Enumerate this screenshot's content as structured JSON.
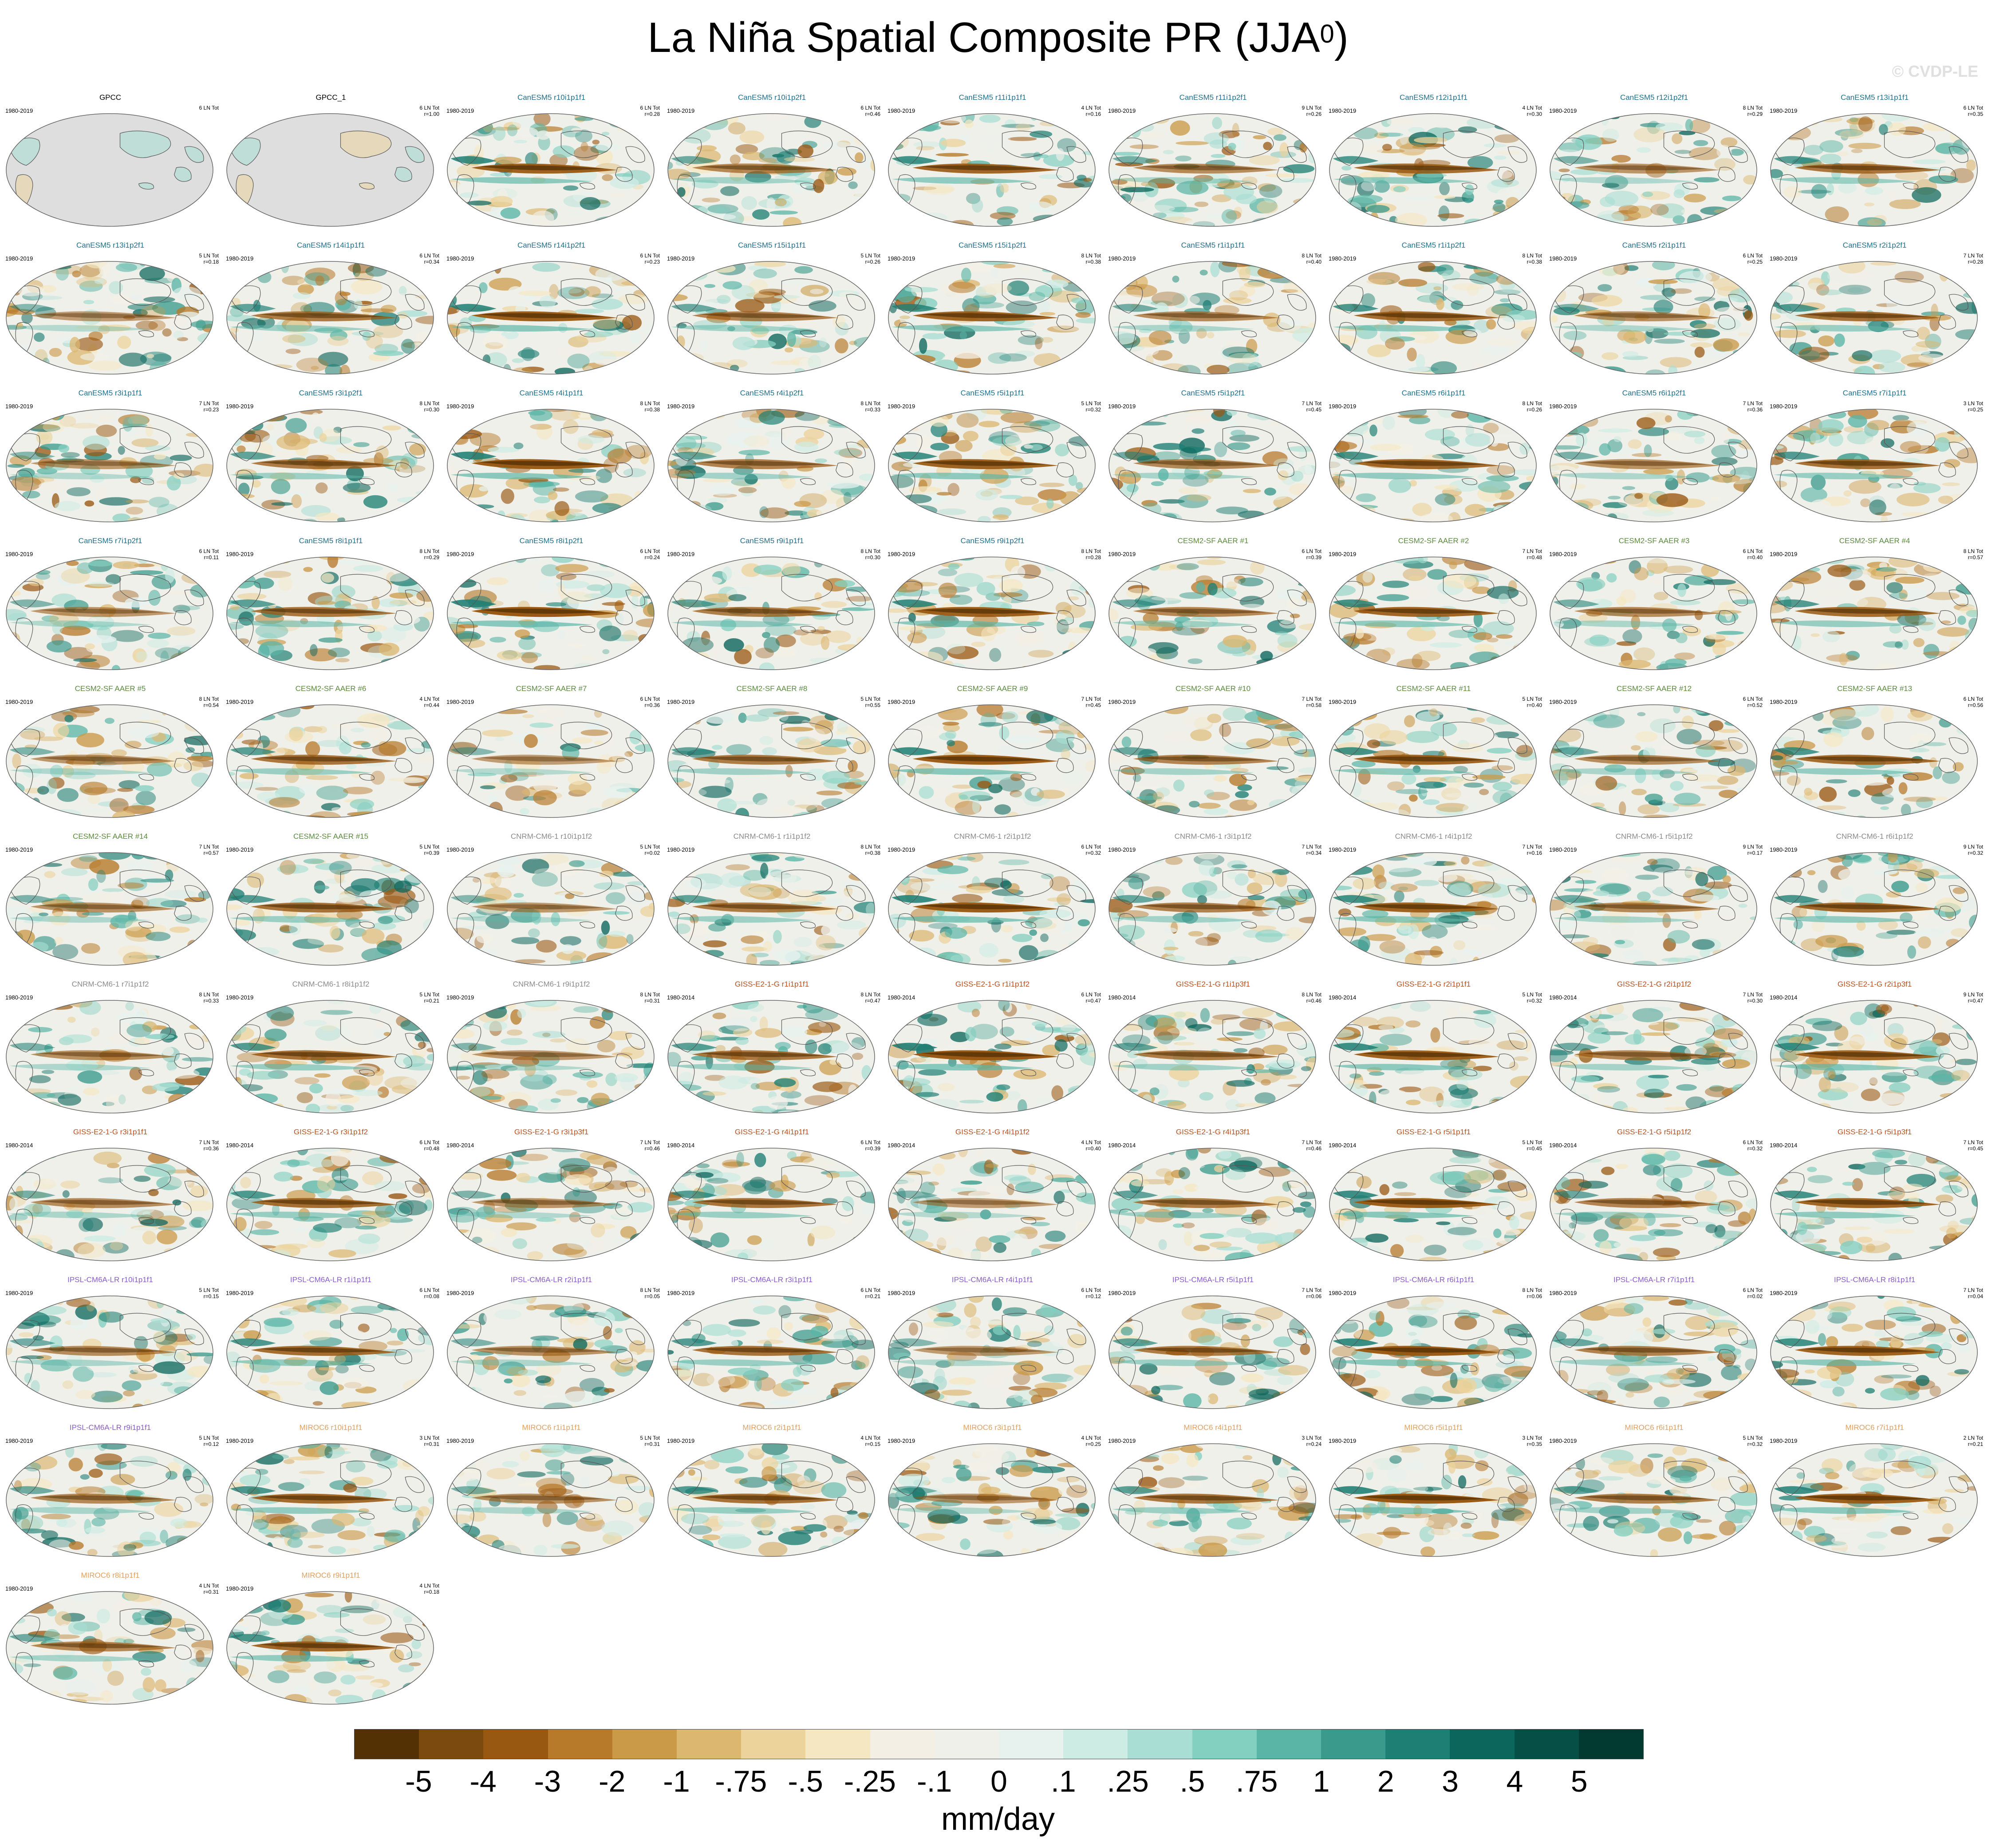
{
  "title": "La Niña Spatial Composite PR (JJA",
  "title_sup": "0",
  "title_close": ")",
  "watermark": "© CVDP-LE",
  "units": "mm/day",
  "colors": {
    "model_CanESM5": "#1f6f8b",
    "model_CESM2": "#5a8a3c",
    "model_CNRM": "#8a8a8a",
    "model_GISS": "#b5511f",
    "model_IPSL": "#8a5cc8",
    "model_MIROC": "#e0a060",
    "obs": "#000000",
    "land_gray": "#dedede"
  },
  "colorbar": {
    "colors": [
      "#543005",
      "#7a4a0f",
      "#995812",
      "#b77a2b",
      "#cb9a48",
      "#dcb770",
      "#ecd39c",
      "#f5e7c2",
      "#f3efe4",
      "#f0f0ea",
      "#e7f2ef",
      "#cdece4",
      "#a8ded3",
      "#83cfc0",
      "#5ab5a6",
      "#3a9a8c",
      "#1e7f74",
      "#0c665c",
      "#064f46",
      "#023a32"
    ],
    "labels": [
      "-5",
      "-4",
      "-3",
      "-2",
      "-1",
      "-.75",
      "-.5",
      "-.25",
      "-.1",
      "0",
      ".1",
      ".25",
      ".5",
      ".75",
      "1",
      "2",
      "3",
      "4",
      "5"
    ]
  },
  "panels": [
    {
      "title": "GPCC",
      "years": "1980-2019",
      "ln": "6 LN Tot",
      "r": "",
      "group": "obs"
    },
    {
      "title": "GPCC_1",
      "years": "",
      "ln": "6 LN Tot",
      "r": "r=1.00",
      "group": "obs"
    },
    {
      "title": "CanESM5 r10i1p1f1",
      "years": "1980-2019",
      "ln": "6 LN Tot",
      "r": "r=0.28",
      "group": "model_CanESM5"
    },
    {
      "title": "CanESM5 r10i1p2f1",
      "years": "1980-2019",
      "ln": "6 LN Tot",
      "r": "r=0.46",
      "group": "model_CanESM5"
    },
    {
      "title": "CanESM5 r11i1p1f1",
      "years": "1980-2019",
      "ln": "4 LN Tot",
      "r": "r=0.16",
      "group": "model_CanESM5"
    },
    {
      "title": "CanESM5 r11i1p2f1",
      "years": "1980-2019",
      "ln": "9 LN Tot",
      "r": "r=0.26",
      "group": "model_CanESM5"
    },
    {
      "title": "CanESM5 r12i1p1f1",
      "years": "1980-2019",
      "ln": "4 LN Tot",
      "r": "r=0.30",
      "group": "model_CanESM5"
    },
    {
      "title": "CanESM5 r12i1p2f1",
      "years": "1980-2019",
      "ln": "8 LN Tot",
      "r": "r=0.29",
      "group": "model_CanESM5"
    },
    {
      "title": "CanESM5 r13i1p1f1",
      "years": "1980-2019",
      "ln": "6 LN Tot",
      "r": "r=0.35",
      "group": "model_CanESM5"
    },
    {
      "title": "CanESM5 r13i1p2f1",
      "years": "1980-2019",
      "ln": "5 LN Tot",
      "r": "r=0.18",
      "group": "model_CanESM5"
    },
    {
      "title": "CanESM5 r14i1p1f1",
      "years": "1980-2019",
      "ln": "6 LN Tot",
      "r": "r=0.34",
      "group": "model_CanESM5"
    },
    {
      "title": "CanESM5 r14i1p2f1",
      "years": "1980-2019",
      "ln": "6 LN Tot",
      "r": "r=0.23",
      "group": "model_CanESM5"
    },
    {
      "title": "CanESM5 r15i1p1f1",
      "years": "1980-2019",
      "ln": "5 LN Tot",
      "r": "r=0.26",
      "group": "model_CanESM5"
    },
    {
      "title": "CanESM5 r15i1p2f1",
      "years": "1980-2019",
      "ln": "8 LN Tot",
      "r": "r=0.38",
      "group": "model_CanESM5"
    },
    {
      "title": "CanESM5 r1i1p1f1",
      "years": "1980-2019",
      "ln": "8 LN Tot",
      "r": "r=0.40",
      "group": "model_CanESM5"
    },
    {
      "title": "CanESM5 r1i1p2f1",
      "years": "1980-2019",
      "ln": "8 LN Tot",
      "r": "r=0.38",
      "group": "model_CanESM5"
    },
    {
      "title": "CanESM5 r2i1p1f1",
      "years": "1980-2019",
      "ln": "6 LN Tot",
      "r": "r=0.25",
      "group": "model_CanESM5"
    },
    {
      "title": "CanESM5 r2i1p2f1",
      "years": "1980-2019",
      "ln": "7 LN Tot",
      "r": "r=0.28",
      "group": "model_CanESM5"
    },
    {
      "title": "CanESM5 r3i1p1f1",
      "years": "1980-2019",
      "ln": "7 LN Tot",
      "r": "r=0.23",
      "group": "model_CanESM5"
    },
    {
      "title": "CanESM5 r3i1p2f1",
      "years": "1980-2019",
      "ln": "8 LN Tot",
      "r": "r=0.30",
      "group": "model_CanESM5"
    },
    {
      "title": "CanESM5 r4i1p1f1",
      "years": "1980-2019",
      "ln": "8 LN Tot",
      "r": "r=0.38",
      "group": "model_CanESM5"
    },
    {
      "title": "CanESM5 r4i1p2f1",
      "years": "1980-2019",
      "ln": "8 LN Tot",
      "r": "r=0.33",
      "group": "model_CanESM5"
    },
    {
      "title": "CanESM5 r5i1p1f1",
      "years": "1980-2019",
      "ln": "5 LN Tot",
      "r": "r=0.32",
      "group": "model_CanESM5"
    },
    {
      "title": "CanESM5 r5i1p2f1",
      "years": "1980-2019",
      "ln": "7 LN Tot",
      "r": "r=0.45",
      "group": "model_CanESM5"
    },
    {
      "title": "CanESM5 r6i1p1f1",
      "years": "1980-2019",
      "ln": "8 LN Tot",
      "r": "r=0.26",
      "group": "model_CanESM5"
    },
    {
      "title": "CanESM5 r6i1p2f1",
      "years": "1980-2019",
      "ln": "7 LN Tot",
      "r": "r=0.36",
      "group": "model_CanESM5"
    },
    {
      "title": "CanESM5 r7i1p1f1",
      "years": "1980-2019",
      "ln": "3 LN Tot",
      "r": "r=0.25",
      "group": "model_CanESM5"
    },
    {
      "title": "CanESM5 r7i1p2f1",
      "years": "1980-2019",
      "ln": "6 LN Tot",
      "r": "r=0.11",
      "group": "model_CanESM5"
    },
    {
      "title": "CanESM5 r8i1p1f1",
      "years": "1980-2019",
      "ln": "8 LN Tot",
      "r": "r=0.29",
      "group": "model_CanESM5"
    },
    {
      "title": "CanESM5 r8i1p2f1",
      "years": "1980-2019",
      "ln": "6 LN Tot",
      "r": "r=0.24",
      "group": "model_CanESM5"
    },
    {
      "title": "CanESM5 r9i1p1f1",
      "years": "1980-2019",
      "ln": "8 LN Tot",
      "r": "r=0.30",
      "group": "model_CanESM5"
    },
    {
      "title": "CanESM5 r9i1p2f1",
      "years": "1980-2019",
      "ln": "8 LN Tot",
      "r": "r=0.28",
      "group": "model_CanESM5"
    },
    {
      "title": "CESM2-SF AAER #1",
      "years": "1980-2019",
      "ln": "6 LN Tot",
      "r": "r=0.39",
      "group": "model_CESM2"
    },
    {
      "title": "CESM2-SF AAER #2",
      "years": "1980-2019",
      "ln": "7 LN Tot",
      "r": "r=0.48",
      "group": "model_CESM2"
    },
    {
      "title": "CESM2-SF AAER #3",
      "years": "1980-2019",
      "ln": "6 LN Tot",
      "r": "r=0.40",
      "group": "model_CESM2"
    },
    {
      "title": "CESM2-SF AAER #4",
      "years": "1980-2019",
      "ln": "8 LN Tot",
      "r": "r=0.57",
      "group": "model_CESM2"
    },
    {
      "title": "CESM2-SF AAER #5",
      "years": "1980-2019",
      "ln": "8 LN Tot",
      "r": "r=0.54",
      "group": "model_CESM2"
    },
    {
      "title": "CESM2-SF AAER #6",
      "years": "1980-2019",
      "ln": "4 LN Tot",
      "r": "r=0.44",
      "group": "model_CESM2"
    },
    {
      "title": "CESM2-SF AAER #7",
      "years": "1980-2019",
      "ln": "6 LN Tot",
      "r": "r=0.36",
      "group": "model_CESM2"
    },
    {
      "title": "CESM2-SF AAER #8",
      "years": "1980-2019",
      "ln": "5 LN Tot",
      "r": "r=0.55",
      "group": "model_CESM2"
    },
    {
      "title": "CESM2-SF AAER #9",
      "years": "1980-2019",
      "ln": "7 LN Tot",
      "r": "r=0.45",
      "group": "model_CESM2"
    },
    {
      "title": "CESM2-SF AAER #10",
      "years": "1980-2019",
      "ln": "7 LN Tot",
      "r": "r=0.58",
      "group": "model_CESM2"
    },
    {
      "title": "CESM2-SF AAER #11",
      "years": "1980-2019",
      "ln": "5 LN Tot",
      "r": "r=0.40",
      "group": "model_CESM2"
    },
    {
      "title": "CESM2-SF AAER #12",
      "years": "1980-2019",
      "ln": "6 LN Tot",
      "r": "r=0.52",
      "group": "model_CESM2"
    },
    {
      "title": "CESM2-SF AAER #13",
      "years": "1980-2019",
      "ln": "6 LN Tot",
      "r": "r=0.56",
      "group": "model_CESM2"
    },
    {
      "title": "CESM2-SF AAER #14",
      "years": "1980-2019",
      "ln": "7 LN Tot",
      "r": "r=0.57",
      "group": "model_CESM2"
    },
    {
      "title": "CESM2-SF AAER #15",
      "years": "1980-2019",
      "ln": "5 LN Tot",
      "r": "r=0.39",
      "group": "model_CESM2"
    },
    {
      "title": "CNRM-CM6-1 r10i1p1f2",
      "years": "1980-2019",
      "ln": "5 LN Tot",
      "r": "r=0.02",
      "group": "model_CNRM"
    },
    {
      "title": "CNRM-CM6-1 r1i1p1f2",
      "years": "1980-2019",
      "ln": "8 LN Tot",
      "r": "r=0.38",
      "group": "model_CNRM"
    },
    {
      "title": "CNRM-CM6-1 r2i1p1f2",
      "years": "1980-2019",
      "ln": "6 LN Tot",
      "r": "r=0.32",
      "group": "model_CNRM"
    },
    {
      "title": "CNRM-CM6-1 r3i1p1f2",
      "years": "1980-2019",
      "ln": "7 LN Tot",
      "r": "r=0.34",
      "group": "model_CNRM"
    },
    {
      "title": "CNRM-CM6-1 r4i1p1f2",
      "years": "1980-2019",
      "ln": "7 LN Tot",
      "r": "r=0.16",
      "group": "model_CNRM"
    },
    {
      "title": "CNRM-CM6-1 r5i1p1f2",
      "years": "1980-2019",
      "ln": "9 LN Tot",
      "r": "r=0.17",
      "group": "model_CNRM"
    },
    {
      "title": "CNRM-CM6-1 r6i1p1f2",
      "years": "1980-2019",
      "ln": "9 LN Tot",
      "r": "r=0.32",
      "group": "model_CNRM"
    },
    {
      "title": "CNRM-CM6-1 r7i1p1f2",
      "years": "1980-2019",
      "ln": "8 LN Tot",
      "r": "r=0.33",
      "group": "model_CNRM"
    },
    {
      "title": "CNRM-CM6-1 r8i1p1f2",
      "years": "1980-2019",
      "ln": "5 LN Tot",
      "r": "r=0.21",
      "group": "model_CNRM"
    },
    {
      "title": "CNRM-CM6-1 r9i1p1f2",
      "years": "1980-2019",
      "ln": "8 LN Tot",
      "r": "r=0.31",
      "group": "model_CNRM"
    },
    {
      "title": "GISS-E2-1-G r1i1p1f1",
      "years": "1980-2014",
      "ln": "8 LN Tot",
      "r": "r=0.47",
      "group": "model_GISS"
    },
    {
      "title": "GISS-E2-1-G r1i1p1f2",
      "years": "1980-2014",
      "ln": "6 LN Tot",
      "r": "r=0.47",
      "group": "model_GISS"
    },
    {
      "title": "GISS-E2-1-G r1i1p3f1",
      "years": "1980-2014",
      "ln": "8 LN Tot",
      "r": "r=0.46",
      "group": "model_GISS"
    },
    {
      "title": "GISS-E2-1-G r2i1p1f1",
      "years": "1980-2014",
      "ln": "5 LN Tot",
      "r": "r=0.32",
      "group": "model_GISS"
    },
    {
      "title": "GISS-E2-1-G r2i1p1f2",
      "years": "1980-2014",
      "ln": "7 LN Tot",
      "r": "r=0.30",
      "group": "model_GISS"
    },
    {
      "title": "GISS-E2-1-G r2i1p3f1",
      "years": "1980-2014",
      "ln": "9 LN Tot",
      "r": "r=0.47",
      "group": "model_GISS"
    },
    {
      "title": "GISS-E2-1-G r3i1p1f1",
      "years": "1980-2014",
      "ln": "7 LN Tot",
      "r": "r=0.36",
      "group": "model_GISS"
    },
    {
      "title": "GISS-E2-1-G r3i1p1f2",
      "years": "1980-2014",
      "ln": "6 LN Tot",
      "r": "r=0.48",
      "group": "model_GISS"
    },
    {
      "title": "GISS-E2-1-G r3i1p3f1",
      "years": "1980-2014",
      "ln": "7 LN Tot",
      "r": "r=0.46",
      "group": "model_GISS"
    },
    {
      "title": "GISS-E2-1-G r4i1p1f1",
      "years": "1980-2014",
      "ln": "6 LN Tot",
      "r": "r=0.39",
      "group": "model_GISS"
    },
    {
      "title": "GISS-E2-1-G r4i1p1f2",
      "years": "1980-2014",
      "ln": "4 LN Tot",
      "r": "r=0.40",
      "group": "model_GISS"
    },
    {
      "title": "GISS-E2-1-G r4i1p3f1",
      "years": "1980-2014",
      "ln": "7 LN Tot",
      "r": "r=0.46",
      "group": "model_GISS"
    },
    {
      "title": "GISS-E2-1-G r5i1p1f1",
      "years": "1980-2014",
      "ln": "5 LN Tot",
      "r": "r=0.45",
      "group": "model_GISS"
    },
    {
      "title": "GISS-E2-1-G r5i1p1f2",
      "years": "1980-2014",
      "ln": "6 LN Tot",
      "r": "r=0.32",
      "group": "model_GISS"
    },
    {
      "title": "GISS-E2-1-G r5i1p3f1",
      "years": "1980-2014",
      "ln": "7 LN Tot",
      "r": "r=0.45",
      "group": "model_GISS"
    },
    {
      "title": "IPSL-CM6A-LR r10i1p1f1",
      "years": "1980-2019",
      "ln": "5 LN Tot",
      "r": "r=0.15",
      "group": "model_IPSL"
    },
    {
      "title": "IPSL-CM6A-LR r1i1p1f1",
      "years": "1980-2019",
      "ln": "6 LN Tot",
      "r": "r=0.08",
      "group": "model_IPSL"
    },
    {
      "title": "IPSL-CM6A-LR r2i1p1f1",
      "years": "1980-2019",
      "ln": "8 LN Tot",
      "r": "r=0.05",
      "group": "model_IPSL"
    },
    {
      "title": "IPSL-CM6A-LR r3i1p1f1",
      "years": "1980-2019",
      "ln": "6 LN Tot",
      "r": "r=0.21",
      "group": "model_IPSL"
    },
    {
      "title": "IPSL-CM6A-LR r4i1p1f1",
      "years": "1980-2019",
      "ln": "6 LN Tot",
      "r": "r=0.12",
      "group": "model_IPSL"
    },
    {
      "title": "IPSL-CM6A-LR r5i1p1f1",
      "years": "1980-2019",
      "ln": "7 LN Tot",
      "r": "r=0.06",
      "group": "model_IPSL"
    },
    {
      "title": "IPSL-CM6A-LR r6i1p1f1",
      "years": "1980-2019",
      "ln": "8 LN Tot",
      "r": "r=0.06",
      "group": "model_IPSL"
    },
    {
      "title": "IPSL-CM6A-LR r7i1p1f1",
      "years": "1980-2019",
      "ln": "6 LN Tot",
      "r": "r=0.02",
      "group": "model_IPSL"
    },
    {
      "title": "IPSL-CM6A-LR r8i1p1f1",
      "years": "1980-2019",
      "ln": "7 LN Tot",
      "r": "r=0.04",
      "group": "model_IPSL"
    },
    {
      "title": "IPSL-CM6A-LR r9i1p1f1",
      "years": "1980-2019",
      "ln": "5 LN Tot",
      "r": "r=0.12",
      "group": "model_IPSL"
    },
    {
      "title": "MIROC6 r10i1p1f1",
      "years": "1980-2019",
      "ln": "3 LN Tot",
      "r": "r=0.31",
      "group": "model_MIROC"
    },
    {
      "title": "MIROC6 r1i1p1f1",
      "years": "1980-2019",
      "ln": "5 LN Tot",
      "r": "r=0.31",
      "group": "model_MIROC"
    },
    {
      "title": "MIROC6 r2i1p1f1",
      "years": "1980-2019",
      "ln": "4 LN Tot",
      "r": "r=0.15",
      "group": "model_MIROC"
    },
    {
      "title": "MIROC6 r3i1p1f1",
      "years": "1980-2019",
      "ln": "4 LN Tot",
      "r": "r=0.25",
      "group": "model_MIROC"
    },
    {
      "title": "MIROC6 r4i1p1f1",
      "years": "1980-2019",
      "ln": "3 LN Tot",
      "r": "r=0.24",
      "group": "model_MIROC"
    },
    {
      "title": "MIROC6 r5i1p1f1",
      "years": "1980-2019",
      "ln": "3 LN Tot",
      "r": "r=0.35",
      "group": "model_MIROC"
    },
    {
      "title": "MIROC6 r6i1p1f1",
      "years": "1980-2019",
      "ln": "5 LN Tot",
      "r": "r=0.32",
      "group": "model_MIROC"
    },
    {
      "title": "MIROC6 r7i1p1f1",
      "years": "1980-2019",
      "ln": "2 LN Tot",
      "r": "r=0.21",
      "group": "model_MIROC"
    },
    {
      "title": "MIROC6 r8i1p1f1",
      "years": "1980-2019",
      "ln": "4 LN Tot",
      "r": "r=0.31",
      "group": "model_MIROC"
    },
    {
      "title": "MIROC6 r9i1p1f1",
      "years": "1980-2019",
      "ln": "4 LN Tot",
      "r": "r=0.18",
      "group": "model_MIROC"
    }
  ]
}
